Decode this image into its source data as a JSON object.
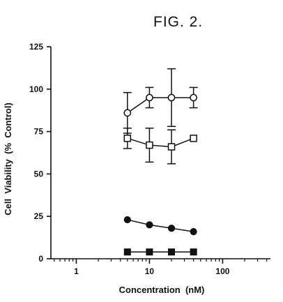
{
  "figure_label": "FIG. 2.",
  "chart_data": {
    "type": "scatter",
    "title": "FIG. 2.",
    "xlabel": "Concentration  (nM)",
    "ylabel": "Cell  Viability  (%  Control)",
    "x_scale": "log",
    "xlim": [
      0.45,
      450
    ],
    "ylim": [
      0,
      125
    ],
    "x_ticks": [
      1,
      10,
      100
    ],
    "x_tick_labels": [
      "1",
      "10",
      "100"
    ],
    "y_ticks": [
      0,
      25,
      50,
      75,
      100,
      125
    ],
    "y_tick_labels": [
      "0",
      "25",
      "50",
      "75",
      "100",
      "125"
    ],
    "grid": false,
    "series": [
      {
        "marker": "circle-open",
        "x": [
          5,
          10,
          20,
          40
        ],
        "y": [
          86,
          95,
          95,
          95
        ],
        "err": [
          12,
          6,
          17,
          6
        ]
      },
      {
        "marker": "square-open",
        "x": [
          5,
          10,
          20,
          40
        ],
        "y": [
          71,
          67,
          66,
          71
        ],
        "err": [
          6,
          10,
          10,
          0
        ]
      },
      {
        "marker": "circle-filled",
        "x": [
          5,
          10,
          20,
          40
        ],
        "y": [
          23,
          20,
          18,
          16
        ],
        "err": [
          0,
          0,
          0,
          0
        ]
      },
      {
        "marker": "square-filled",
        "x": [
          5,
          10,
          20,
          40
        ],
        "y": [
          4,
          4,
          4,
          4
        ],
        "err": [
          0,
          0,
          0,
          0
        ]
      }
    ]
  }
}
